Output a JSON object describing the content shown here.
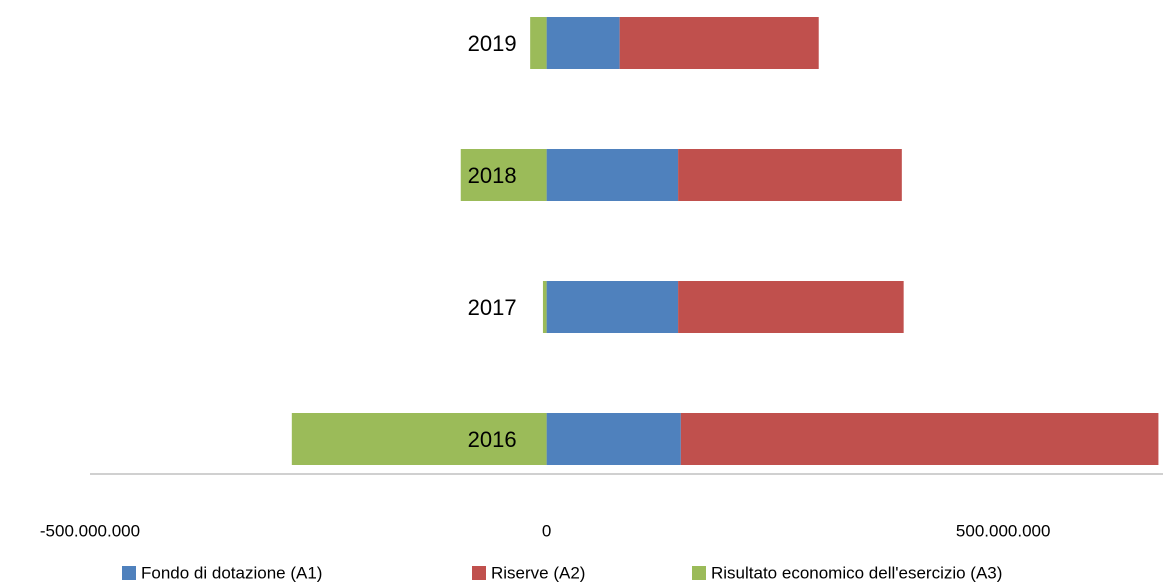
{
  "chart_data": {
    "type": "stacked-barh",
    "categories": [
      "2016",
      "2017",
      "2018",
      "2019"
    ],
    "series": [
      {
        "name": "Fondo di dotazione (A1)",
        "color": "#4f81bd",
        "values": [
          147000000,
          144000000,
          144000000,
          80000000
        ]
      },
      {
        "name": "Riserve (A2)",
        "color": "#c0504d",
        "values": [
          523000000,
          247000000,
          245000000,
          218000000
        ]
      },
      {
        "name": "Risultato economico dell'esercizio (A3)",
        "color": "#9bbb59",
        "values": [
          -279000000,
          -4000000,
          -94000000,
          -18000000
        ]
      }
    ],
    "xlim": [
      -500000000,
      675000000
    ],
    "xticks": [
      {
        "value": -500000000,
        "label": "-500.000.000"
      },
      0,
      {
        "value": 500000000,
        "label": "500.000.000"
      }
    ],
    "grid": false,
    "legend": "bottom"
  }
}
